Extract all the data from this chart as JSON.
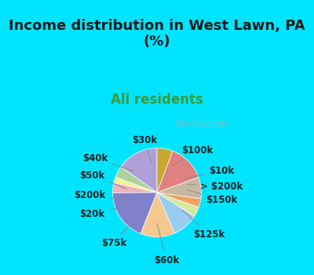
{
  "title": "Income distribution in West Lawn, PA\n(%)",
  "subtitle": "All residents",
  "title_color": "#1a1a1a",
  "subtitle_color": "#3a9a3a",
  "bg_color_top": "#00e5ff",
  "bg_color_chart": "#e8f5e9",
  "watermark": "City-Data.com",
  "labels": [
    "$100k",
    "$10k",
    "> $200k",
    "$150k",
    "$125k",
    "$60k",
    "$75k",
    "$20k",
    "$200k",
    "$50k",
    "$40k",
    "$30k"
  ],
  "values": [
    14.5,
    4.0,
    2.0,
    3.5,
    18.0,
    12.0,
    9.0,
    3.5,
    3.0,
    7.5,
    13.0,
    5.5
  ],
  "colors": [
    "#b0a0d8",
    "#aed1a0",
    "#f5f090",
    "#f0b0c0",
    "#8080cc",
    "#f5c890",
    "#99ccf0",
    "#d4e8a0",
    "#f0a060",
    "#c8b8a0",
    "#e08080",
    "#c8a830"
  ],
  "startangle": 90,
  "label_fontsize": 8.5,
  "title_fontsize": 13,
  "subtitle_fontsize": 12
}
